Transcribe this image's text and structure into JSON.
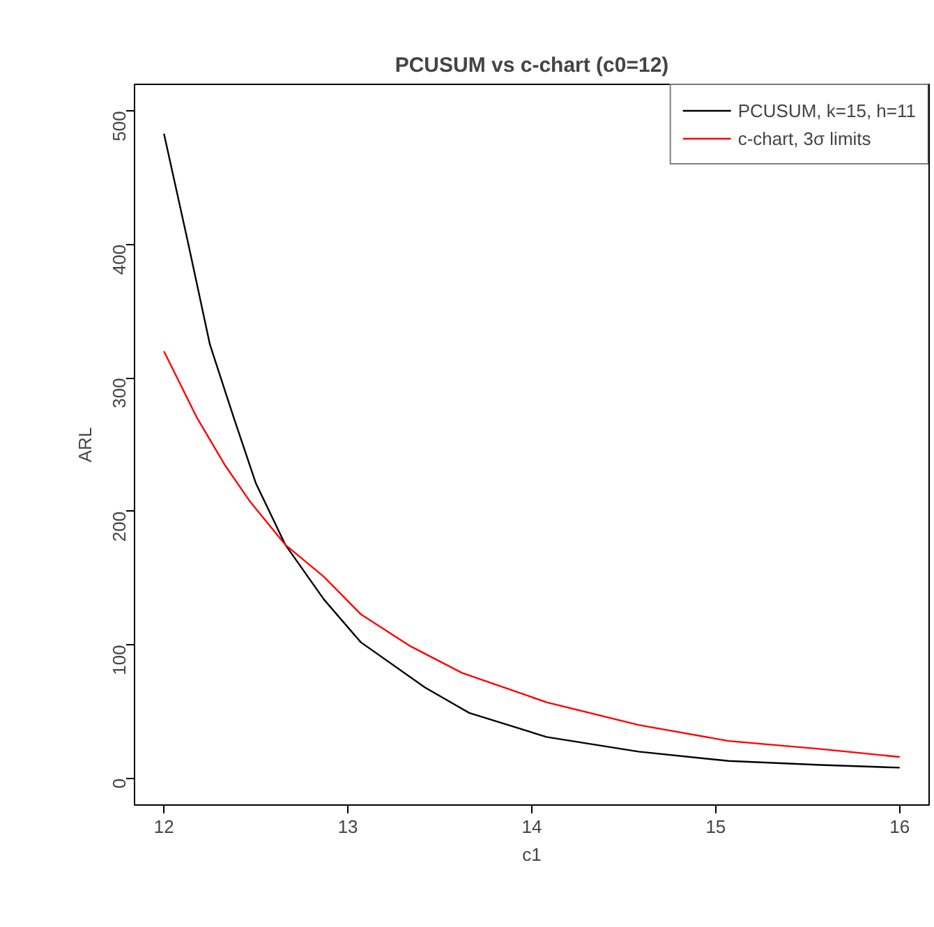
{
  "chart_data": {
    "type": "line",
    "title": "PCUSUM vs c-chart (c0=12)",
    "xlabel": "c1",
    "ylabel": "ARL",
    "xlim": [
      11.84,
      16.16
    ],
    "ylim": [
      -20,
      520
    ],
    "xticks": [
      12,
      13,
      14,
      15,
      16
    ],
    "yticks": [
      0,
      100,
      200,
      300,
      400,
      500
    ],
    "grid": false,
    "legend": "top right",
    "line_style": "solid",
    "marker": "none",
    "series": [
      {
        "name": "PCUSUM, k=15, h=11",
        "color": "#000000",
        "x": [
          12.0,
          12.13,
          12.25,
          12.38,
          12.5,
          12.66,
          12.87,
          13.07,
          13.42,
          13.66,
          14.08,
          14.58,
          15.07,
          15.57,
          16.0
        ],
        "values": [
          483,
          402,
          325,
          270,
          221,
          175,
          134,
          102,
          68,
          49,
          31,
          20,
          13,
          10,
          8
        ]
      },
      {
        "name": "c-chart, 3σ limits",
        "color": "#ff0000",
        "x": [
          12.0,
          12.18,
          12.33,
          12.47,
          12.66,
          12.87,
          13.07,
          13.34,
          13.62,
          14.08,
          14.58,
          15.07,
          15.57,
          16.0
        ],
        "values": [
          320,
          270,
          235,
          207,
          175,
          151,
          123,
          99,
          79,
          57,
          40,
          28,
          22,
          16
        ]
      }
    ]
  }
}
